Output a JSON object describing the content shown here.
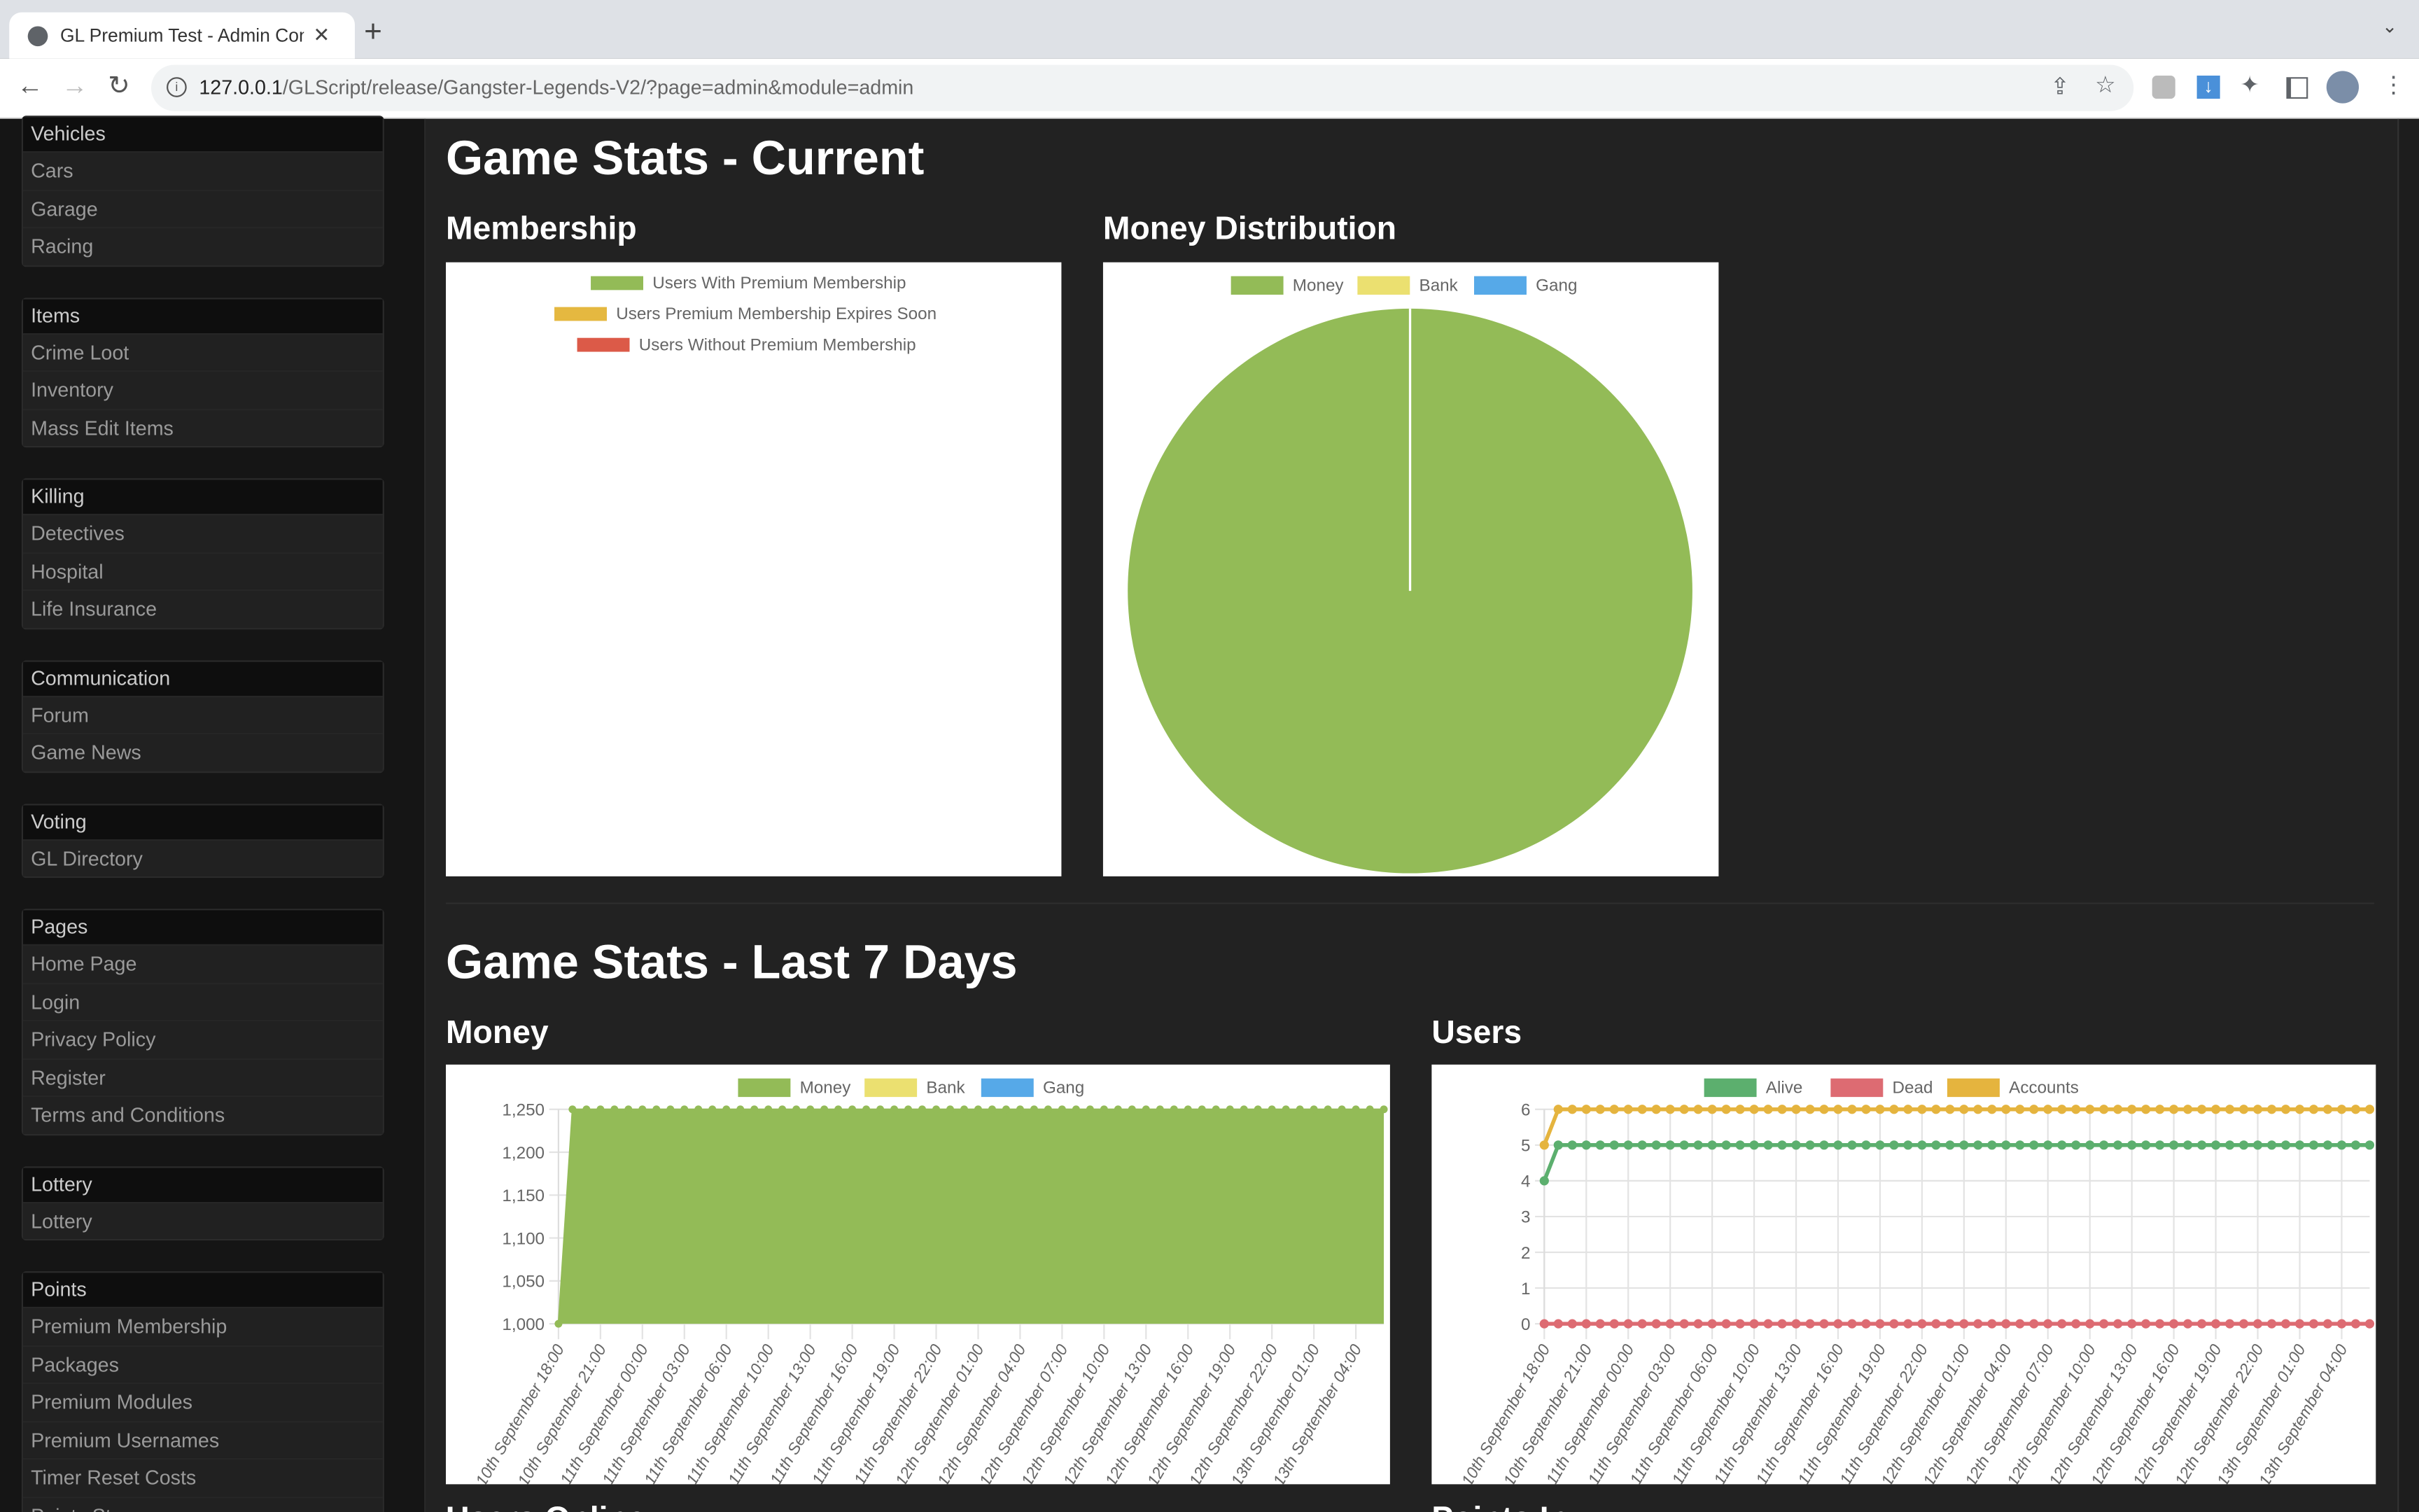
{
  "browser": {
    "tab_title": "GL Premium Test - Admin Control Panel",
    "url_host": "127.0.0.1",
    "url_path": "/GLScript/release/Gangster-Legends-V2/?page=admin&module=admin"
  },
  "sidebar": {
    "groups": [
      {
        "header": "Vehicles",
        "items": [
          "Cars",
          "Garage",
          "Racing"
        ]
      },
      {
        "header": "Items",
        "items": [
          "Crime Loot",
          "Inventory",
          "Mass Edit Items"
        ]
      },
      {
        "header": "Killing",
        "items": [
          "Detectives",
          "Hospital",
          "Life Insurance"
        ]
      },
      {
        "header": "Communication",
        "items": [
          "Forum",
          "Game News"
        ]
      },
      {
        "header": "Voting",
        "items": [
          "GL Directory"
        ]
      },
      {
        "header": "Pages",
        "items": [
          "Home Page",
          "Login",
          "Privacy Policy",
          "Register",
          "Terms and Conditions"
        ]
      },
      {
        "header": "Lottery",
        "items": [
          "Lottery"
        ]
      },
      {
        "header": "Points",
        "items": [
          "Premium Membership",
          "Packages",
          "Premium Modules",
          "Premium Usernames",
          "Timer Reset Costs",
          "Points Store"
        ]
      }
    ]
  },
  "main": {
    "current_title": "Game Stats - Current",
    "membership_title": "Membership",
    "money_dist_title": "Money Distribution",
    "last7_title": "Game Stats - Last 7 Days",
    "money_title": "Money",
    "users_title": "Users",
    "users_online_title": "Users Online",
    "points_title": "Points In"
  },
  "chart_data": [
    {
      "type": "pie",
      "title": "Membership",
      "legend": [
        "Users With Premium Membership",
        "Users Premium Membership Expires Soon",
        "Users Without Premium Membership"
      ],
      "colors": [
        "#93bb57",
        "#e5b840",
        "#dc5a48"
      ],
      "values": [
        0,
        0,
        0
      ],
      "legend_position": "top"
    },
    {
      "type": "pie",
      "title": "Money Distribution",
      "legend": [
        "Money",
        "Bank",
        "Gang"
      ],
      "colors": [
        "#93bb57",
        "#ebe070",
        "#56a9e8"
      ],
      "values": [
        1250,
        0,
        0
      ],
      "legend_position": "top"
    },
    {
      "type": "area",
      "title": "Money",
      "legend": [
        "Money",
        "Bank",
        "Gang"
      ],
      "colors": [
        "#93bb57",
        "#ebe070",
        "#56a9e8"
      ],
      "ylim": [
        1000,
        1250
      ],
      "yticks": [
        "1,000",
        "1,050",
        "1,100",
        "1,150",
        "1,200",
        "1,250"
      ],
      "xticks": [
        "10th September 18:00",
        "10th September 21:00",
        "11th September 00:00",
        "11th September 03:00",
        "11th September 06:00",
        "11th September 10:00",
        "11th September 13:00",
        "11th September 16:00",
        "11th September 19:00",
        "11th September 22:00",
        "12th September 01:00",
        "12th September 04:00",
        "12th September 07:00",
        "12th September 10:00",
        "12th September 13:00",
        "12th September 16:00",
        "12th September 19:00",
        "12th September 22:00",
        "13th September 01:00",
        "13th September 04:00"
      ],
      "series": [
        {
          "name": "Money",
          "values": [
            1000,
            1250,
            1250,
            1250,
            1250,
            1250,
            1250,
            1250,
            1250,
            1250,
            1250,
            1250,
            1250,
            1250,
            1250,
            1250,
            1250,
            1250,
            1250,
            1250,
            1250,
            1250,
            1250,
            1250,
            1250,
            1250,
            1250,
            1250,
            1250,
            1250,
            1250,
            1250,
            1250,
            1250,
            1250,
            1250,
            1250,
            1250,
            1250,
            1250,
            1250,
            1250,
            1250,
            1250,
            1250,
            1250,
            1250,
            1250,
            1250,
            1250,
            1250,
            1250,
            1250,
            1250,
            1250,
            1250,
            1250,
            1250,
            1250,
            1250
          ]
        }
      ],
      "legend_position": "top"
    },
    {
      "type": "line",
      "title": "Users",
      "legend": [
        "Alive",
        "Dead",
        "Accounts"
      ],
      "colors": [
        "#5caf6e",
        "#dd6b72",
        "#e5b43e"
      ],
      "ylim": [
        0,
        6
      ],
      "yticks": [
        "0",
        "1",
        "2",
        "3",
        "4",
        "5",
        "6"
      ],
      "xticks": [
        "10th September 18:00",
        "10th September 21:00",
        "11th September 00:00",
        "11th September 03:00",
        "11th September 06:00",
        "11th September 10:00",
        "11th September 13:00",
        "11th September 16:00",
        "11th September 19:00",
        "11th September 22:00",
        "12th September 01:00",
        "12th September 04:00",
        "12th September 07:00",
        "12th September 10:00",
        "12th September 13:00",
        "12th September 16:00",
        "12th September 19:00",
        "12th September 22:00",
        "13th September 01:00",
        "13th September 04:00"
      ],
      "series": [
        {
          "name": "Alive",
          "values": [
            4,
            5,
            5,
            5,
            5,
            5,
            5,
            5,
            5,
            5,
            5,
            5,
            5,
            5,
            5,
            5,
            5,
            5,
            5,
            5,
            5,
            5,
            5,
            5,
            5,
            5,
            5,
            5,
            5,
            5,
            5,
            5,
            5,
            5,
            5,
            5,
            5,
            5,
            5,
            5,
            5,
            5,
            5,
            5,
            5,
            5,
            5,
            5,
            5,
            5,
            5,
            5,
            5,
            5,
            5,
            5,
            5,
            5,
            5,
            5
          ]
        },
        {
          "name": "Dead",
          "values": [
            0,
            0,
            0,
            0,
            0,
            0,
            0,
            0,
            0,
            0,
            0,
            0,
            0,
            0,
            0,
            0,
            0,
            0,
            0,
            0,
            0,
            0,
            0,
            0,
            0,
            0,
            0,
            0,
            0,
            0,
            0,
            0,
            0,
            0,
            0,
            0,
            0,
            0,
            0,
            0,
            0,
            0,
            0,
            0,
            0,
            0,
            0,
            0,
            0,
            0,
            0,
            0,
            0,
            0,
            0,
            0,
            0,
            0,
            0,
            0
          ]
        },
        {
          "name": "Accounts",
          "values": [
            5,
            6,
            6,
            6,
            6,
            6,
            6,
            6,
            6,
            6,
            6,
            6,
            6,
            6,
            6,
            6,
            6,
            6,
            6,
            6,
            6,
            6,
            6,
            6,
            6,
            6,
            6,
            6,
            6,
            6,
            6,
            6,
            6,
            6,
            6,
            6,
            6,
            6,
            6,
            6,
            6,
            6,
            6,
            6,
            6,
            6,
            6,
            6,
            6,
            6,
            6,
            6,
            6,
            6,
            6,
            6,
            6,
            6,
            6,
            6
          ]
        }
      ],
      "legend_position": "top"
    }
  ]
}
